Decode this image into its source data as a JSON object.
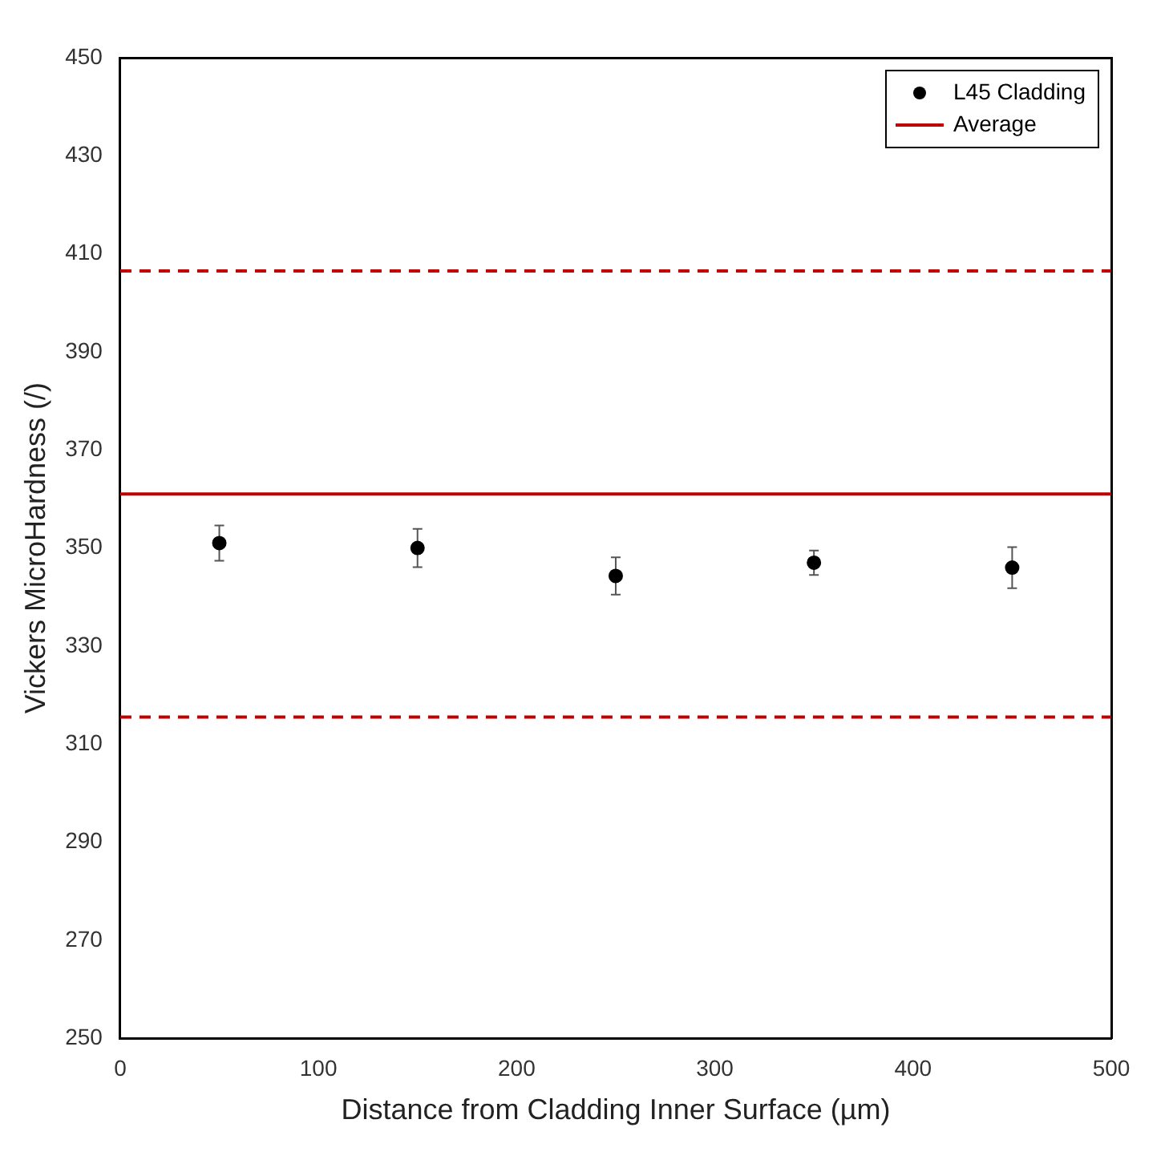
{
  "chart_data": {
    "type": "scatter",
    "xlabel": "Distance from Cladding Inner Surface (µm)",
    "ylabel": "Vickers MicroHardness (/)",
    "xlim": [
      0,
      500
    ],
    "xticks": [
      0,
      100,
      200,
      300,
      400,
      500
    ],
    "ylim": [
      250,
      450
    ],
    "yticks": [
      250,
      270,
      290,
      310,
      330,
      350,
      370,
      390,
      410,
      430,
      450
    ],
    "series": [
      {
        "name": "L45 Cladding",
        "color": "#000000",
        "x": [
          50,
          150,
          250,
          350,
          450
        ],
        "values": [
          351,
          350,
          344.3,
          347,
          346
        ],
        "errors": [
          3.6,
          3.9,
          3.8,
          2.5,
          4.2
        ]
      },
      {
        "name": "Average",
        "type": "line",
        "color": "#c00000",
        "x": [
          0,
          500
        ],
        "values": [
          361,
          361
        ],
        "marker": "none"
      }
    ],
    "ref_lines": [
      {
        "axis": "y",
        "value": 406.5,
        "color": "#c00000",
        "line_style": "dashed"
      },
      {
        "axis": "y",
        "value": 315.5,
        "color": "#c00000",
        "line_style": "dashed"
      }
    ],
    "marker": "circle",
    "grid": false,
    "legend": "top right"
  }
}
